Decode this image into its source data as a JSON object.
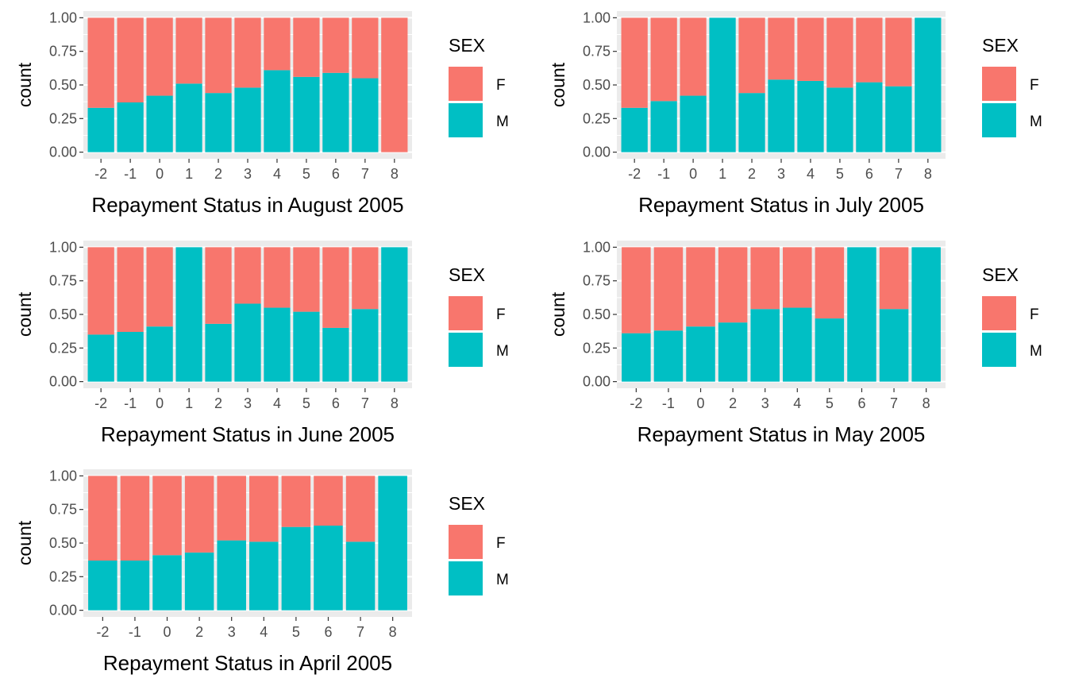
{
  "colors": {
    "F": "#F8766D",
    "M": "#00BFC4",
    "panel": "#EBEBEB",
    "grid": "#FFFFFF",
    "tick": "#333333"
  },
  "chart_data": [
    {
      "type": "bar",
      "stacked": "fill",
      "xlabel": "Repayment Status in August 2005",
      "ylabel": "count",
      "ylim": [
        0,
        1
      ],
      "yticks": [
        "0.00",
        "0.25",
        "0.50",
        "0.75",
        "1.00"
      ],
      "categories": [
        "-2",
        "-1",
        "0",
        "1",
        "2",
        "3",
        "4",
        "5",
        "6",
        "7",
        "8"
      ],
      "legend": {
        "title": "SEX",
        "labels": [
          "F",
          "M"
        ],
        "position": "right"
      },
      "series": [
        {
          "name": "F",
          "values": [
            0.67,
            0.63,
            0.58,
            0.49,
            0.56,
            0.52,
            0.39,
            0.44,
            0.41,
            0.45,
            1.0
          ]
        },
        {
          "name": "M",
          "values": [
            0.33,
            0.37,
            0.42,
            0.51,
            0.44,
            0.48,
            0.61,
            0.56,
            0.59,
            0.55,
            0.0
          ]
        }
      ]
    },
    {
      "type": "bar",
      "stacked": "fill",
      "xlabel": "Repayment Status in July 2005",
      "ylabel": "count",
      "ylim": [
        0,
        1
      ],
      "yticks": [
        "0.00",
        "0.25",
        "0.50",
        "0.75",
        "1.00"
      ],
      "categories": [
        "-2",
        "-1",
        "0",
        "1",
        "2",
        "3",
        "4",
        "5",
        "6",
        "7",
        "8"
      ],
      "legend": {
        "title": "SEX",
        "labels": [
          "F",
          "M"
        ],
        "position": "right"
      },
      "series": [
        {
          "name": "F",
          "values": [
            0.67,
            0.62,
            0.58,
            0.0,
            0.56,
            0.46,
            0.47,
            0.52,
            0.48,
            0.51,
            0.0
          ]
        },
        {
          "name": "M",
          "values": [
            0.33,
            0.38,
            0.42,
            1.0,
            0.44,
            0.54,
            0.53,
            0.48,
            0.52,
            0.49,
            1.0
          ]
        }
      ]
    },
    {
      "type": "bar",
      "stacked": "fill",
      "xlabel": "Repayment Status in June 2005",
      "ylabel": "count",
      "ylim": [
        0,
        1
      ],
      "yticks": [
        "0.00",
        "0.25",
        "0.50",
        "0.75",
        "1.00"
      ],
      "categories": [
        "-2",
        "-1",
        "0",
        "1",
        "2",
        "3",
        "4",
        "5",
        "6",
        "7",
        "8"
      ],
      "legend": {
        "title": "SEX",
        "labels": [
          "F",
          "M"
        ],
        "position": "right"
      },
      "series": [
        {
          "name": "F",
          "values": [
            0.65,
            0.63,
            0.59,
            0.0,
            0.57,
            0.42,
            0.45,
            0.48,
            0.6,
            0.46,
            0.0
          ]
        },
        {
          "name": "M",
          "values": [
            0.35,
            0.37,
            0.41,
            1.0,
            0.43,
            0.58,
            0.55,
            0.52,
            0.4,
            0.54,
            1.0
          ]
        }
      ]
    },
    {
      "type": "bar",
      "stacked": "fill",
      "xlabel": "Repayment Status in May 2005",
      "ylabel": "count",
      "ylim": [
        0,
        1
      ],
      "yticks": [
        "0.00",
        "0.25",
        "0.50",
        "0.75",
        "1.00"
      ],
      "categories": [
        "-2",
        "-1",
        "0",
        "2",
        "3",
        "4",
        "5",
        "6",
        "7",
        "8"
      ],
      "legend": {
        "title": "SEX",
        "labels": [
          "F",
          "M"
        ],
        "position": "right"
      },
      "series": [
        {
          "name": "F",
          "values": [
            0.64,
            0.62,
            0.59,
            0.56,
            0.46,
            0.45,
            0.53,
            0.0,
            0.46,
            0.0
          ]
        },
        {
          "name": "M",
          "values": [
            0.36,
            0.38,
            0.41,
            0.44,
            0.54,
            0.55,
            0.47,
            1.0,
            0.54,
            1.0
          ]
        }
      ]
    },
    {
      "type": "bar",
      "stacked": "fill",
      "xlabel": "Repayment Status in April 2005",
      "ylabel": "count",
      "ylim": [
        0,
        1
      ],
      "yticks": [
        "0.00",
        "0.25",
        "0.50",
        "0.75",
        "1.00"
      ],
      "categories": [
        "-2",
        "-1",
        "0",
        "2",
        "3",
        "4",
        "5",
        "6",
        "7",
        "8"
      ],
      "legend": {
        "title": "SEX",
        "labels": [
          "F",
          "M"
        ],
        "position": "right"
      },
      "series": [
        {
          "name": "F",
          "values": [
            0.63,
            0.63,
            0.59,
            0.57,
            0.48,
            0.49,
            0.38,
            0.37,
            0.49,
            0.0
          ]
        },
        {
          "name": "M",
          "values": [
            0.37,
            0.37,
            0.41,
            0.43,
            0.52,
            0.51,
            0.62,
            0.63,
            0.51,
            1.0
          ]
        }
      ]
    }
  ]
}
